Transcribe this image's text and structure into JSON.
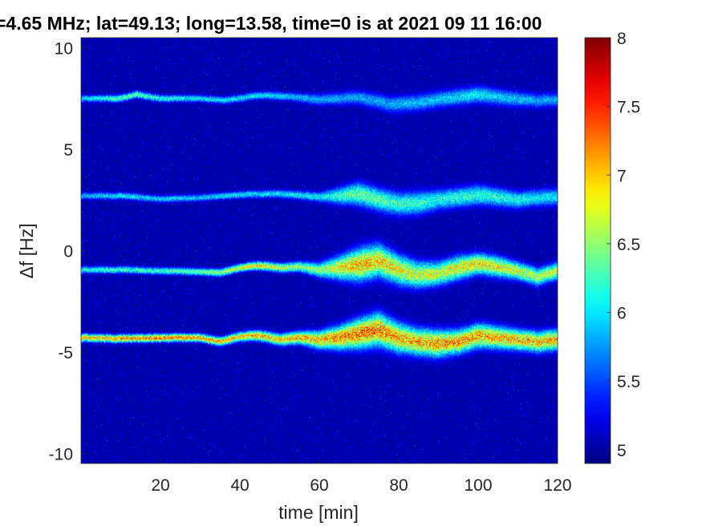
{
  "chart_data": {
    "type": "heatmap",
    "title": "=4.65 MHz;  lat=49.13; long=13.58, time=0 is at 2021 09 11 16:00",
    "xlabel": "time [min]",
    "ylabel": "Δf [Hz]",
    "xlim": [
      0,
      120
    ],
    "ylim": [
      -10.5,
      10.5
    ],
    "x_ticks": [
      20,
      40,
      60,
      80,
      100,
      120
    ],
    "x_tick_labels": [
      "20",
      "40",
      "60",
      "80",
      "100",
      "120"
    ],
    "y_ticks": [
      -10,
      -5,
      0,
      5,
      10
    ],
    "y_tick_labels": [
      "-10",
      "-5",
      "0",
      "5",
      "10"
    ],
    "colorbar": {
      "colormap": "jet",
      "range": [
        4.9,
        8
      ],
      "ticks": [
        5,
        5.5,
        6,
        6.5,
        7,
        7.5,
        8
      ],
      "tick_labels": [
        "5",
        "5.5",
        "6",
        "6.5",
        "7",
        "7.5",
        "8"
      ]
    },
    "background_level": 4.95,
    "series": [
      {
        "x": [
          0,
          10,
          14,
          20,
          30,
          36,
          45,
          52,
          60,
          70,
          78,
          85,
          92,
          100,
          108,
          115,
          120
        ],
        "y": [
          7.5,
          7.5,
          7.7,
          7.5,
          7.5,
          7.4,
          7.65,
          7.6,
          7.45,
          7.55,
          7.2,
          7.3,
          7.5,
          7.7,
          7.5,
          7.4,
          7.45
        ],
        "peak": [
          5.9,
          6.3,
          6.3,
          6.1,
          6.0,
          6.0,
          6.0,
          5.9,
          5.8,
          5.8,
          5.8,
          5.85,
          5.9,
          6.0,
          5.9,
          5.8,
          5.8
        ],
        "spread": [
          0.03,
          0.03,
          0.03,
          0.03,
          0.03,
          0.03,
          0.04,
          0.05,
          0.1,
          0.15,
          0.2,
          0.2,
          0.2,
          0.2,
          0.18,
          0.15,
          0.15
        ]
      },
      {
        "x": [
          0,
          10,
          20,
          30,
          40,
          50,
          60,
          65,
          70,
          75,
          80,
          85,
          90,
          100,
          110,
          115,
          120
        ],
        "y": [
          2.7,
          2.7,
          2.55,
          2.6,
          2.75,
          2.8,
          2.65,
          2.7,
          2.8,
          2.5,
          2.3,
          2.35,
          2.5,
          2.75,
          2.5,
          2.6,
          2.65
        ],
        "peak": [
          5.8,
          6.0,
          5.9,
          5.9,
          6.0,
          6.0,
          6.0,
          6.2,
          6.4,
          6.3,
          6.2,
          6.2,
          6.1,
          6.2,
          6.1,
          6.0,
          6.0
        ],
        "spread": [
          0.03,
          0.03,
          0.03,
          0.03,
          0.03,
          0.04,
          0.08,
          0.2,
          0.3,
          0.3,
          0.3,
          0.3,
          0.25,
          0.25,
          0.2,
          0.2,
          0.2
        ]
      },
      {
        "x": [
          0,
          10,
          20,
          30,
          35,
          40,
          45,
          50,
          55,
          60,
          65,
          70,
          75,
          80,
          85,
          90,
          95,
          100,
          105,
          110,
          115,
          120
        ],
        "y": [
          -0.95,
          -0.95,
          -1.0,
          -1.05,
          -1.1,
          -0.85,
          -0.75,
          -0.85,
          -0.8,
          -0.95,
          -0.85,
          -0.7,
          -0.5,
          -0.95,
          -1.2,
          -1.15,
          -0.85,
          -0.65,
          -0.8,
          -1.0,
          -1.3,
          -1.0
        ],
        "peak": [
          6.1,
          6.2,
          6.2,
          6.4,
          6.5,
          6.7,
          6.9,
          6.7,
          6.5,
          6.5,
          6.8,
          7.0,
          6.9,
          6.8,
          6.7,
          6.7,
          6.8,
          6.9,
          6.8,
          6.7,
          6.6,
          6.6
        ],
        "spread": [
          0.03,
          0.03,
          0.03,
          0.03,
          0.04,
          0.04,
          0.05,
          0.06,
          0.08,
          0.15,
          0.3,
          0.45,
          0.45,
          0.4,
          0.35,
          0.3,
          0.3,
          0.25,
          0.25,
          0.2,
          0.2,
          0.2
        ]
      },
      {
        "x": [
          0,
          10,
          20,
          30,
          35,
          40,
          45,
          50,
          55,
          60,
          65,
          70,
          75,
          80,
          85,
          90,
          95,
          100,
          105,
          110,
          115,
          120
        ],
        "y": [
          -4.3,
          -4.35,
          -4.3,
          -4.3,
          -4.5,
          -4.25,
          -4.2,
          -4.4,
          -4.3,
          -4.4,
          -4.3,
          -4.1,
          -3.9,
          -4.3,
          -4.5,
          -4.6,
          -4.5,
          -4.2,
          -4.3,
          -4.4,
          -4.5,
          -4.4
        ],
        "peak": [
          6.9,
          7.1,
          7.2,
          7.1,
          7.0,
          7.0,
          7.0,
          6.9,
          7.0,
          7.0,
          7.1,
          7.2,
          7.2,
          7.0,
          7.0,
          7.1,
          7.1,
          7.1,
          7.0,
          7.0,
          7.0,
          7.0
        ],
        "spread": [
          0.04,
          0.04,
          0.04,
          0.04,
          0.05,
          0.06,
          0.08,
          0.1,
          0.12,
          0.2,
          0.3,
          0.4,
          0.45,
          0.4,
          0.35,
          0.35,
          0.3,
          0.3,
          0.28,
          0.25,
          0.25,
          0.25
        ]
      }
    ]
  }
}
